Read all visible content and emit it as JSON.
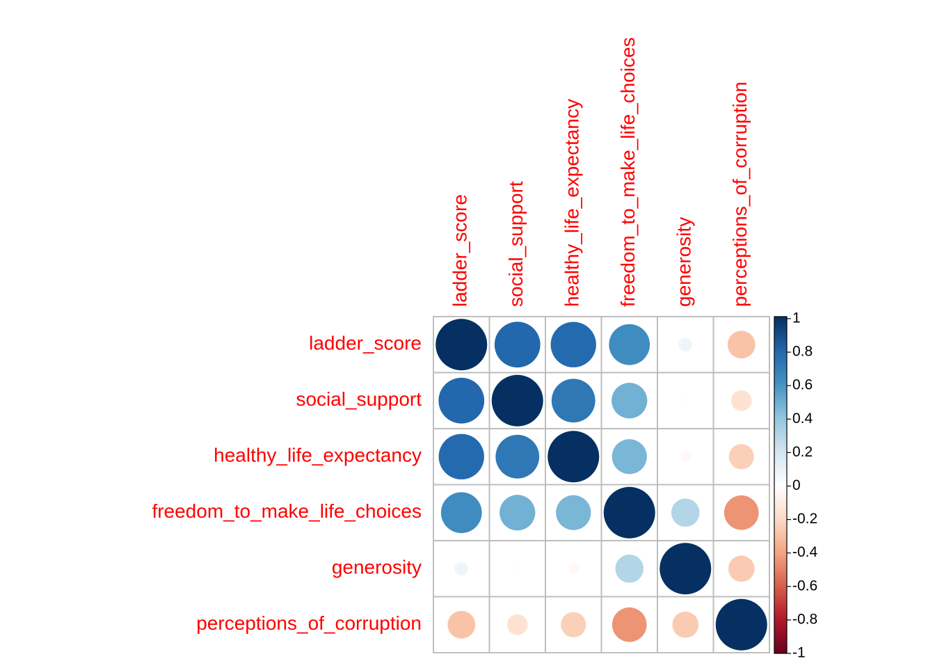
{
  "chart_data": {
    "type": "heatmap",
    "variables": [
      "ladder_score",
      "social_support",
      "healthy_life_expectancy",
      "freedom_to_make_life_choices",
      "generosity",
      "perceptions_of_corruption"
    ],
    "matrix": [
      [
        1.0,
        0.79,
        0.78,
        0.63,
        0.07,
        -0.29
      ],
      [
        0.79,
        1.0,
        0.72,
        0.48,
        -0.01,
        -0.16
      ],
      [
        0.78,
        0.72,
        1.0,
        0.46,
        -0.04,
        -0.24
      ],
      [
        0.63,
        0.48,
        0.46,
        1.0,
        0.3,
        -0.45
      ],
      [
        0.07,
        -0.01,
        -0.04,
        0.3,
        1.0,
        -0.26
      ],
      [
        -0.29,
        -0.16,
        -0.24,
        -0.45,
        -0.26,
        1.0
      ]
    ],
    "colorbar": {
      "ticks": [
        "1",
        "0.8",
        "0.6",
        "0.4",
        "0.2",
        "0",
        "-0.2",
        "-0.4",
        "-0.6",
        "-0.8",
        "-1"
      ],
      "range": [
        -1,
        1
      ]
    },
    "label_color": "#ff0000",
    "grid": true
  }
}
